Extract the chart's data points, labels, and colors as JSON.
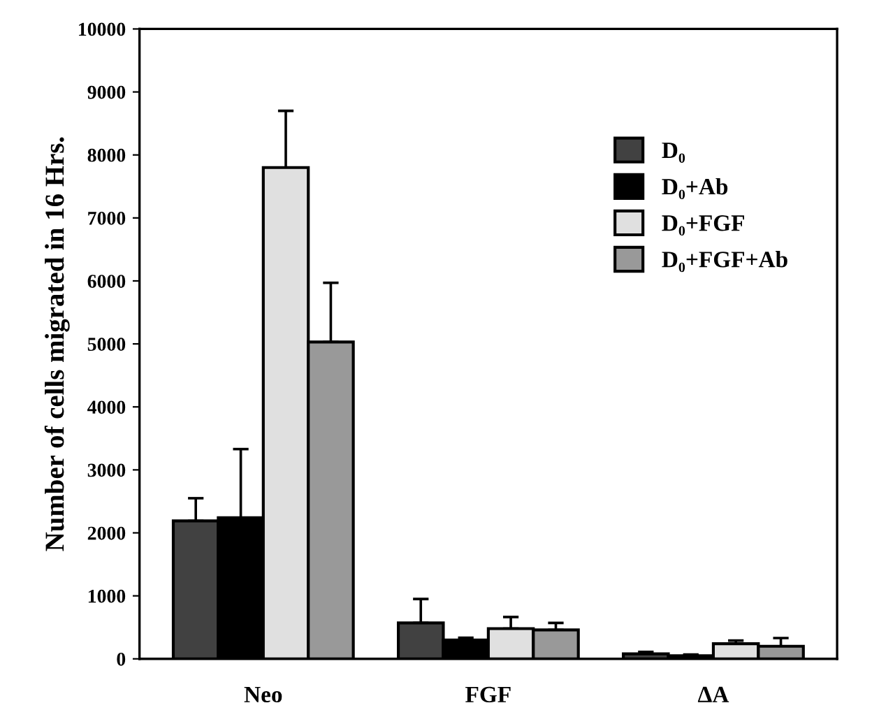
{
  "chart_data": {
    "type": "bar",
    "ylabel": "Number of cells migrated in 16 Hrs.",
    "categories": [
      "Neo",
      "FGF",
      "ΔA"
    ],
    "series": [
      {
        "name": "D₀",
        "color": "#414141",
        "values": [
          2190,
          570,
          80
        ],
        "errors": [
          360,
          380,
          30
        ]
      },
      {
        "name": "D₀+Ab",
        "color": "#000000",
        "values": [
          2240,
          300,
          50
        ],
        "errors": [
          1090,
          35,
          20
        ]
      },
      {
        "name": "D₀+FGF",
        "color": "#e0e0e0",
        "values": [
          7800,
          480,
          240
        ],
        "errors": [
          900,
          185,
          50
        ]
      },
      {
        "name": "D₀+FGF+Ab",
        "color": "#999999",
        "values": [
          5030,
          460,
          200
        ],
        "errors": [
          940,
          110,
          130
        ]
      }
    ],
    "ylim": [
      0,
      10000
    ],
    "yticks": [
      0,
      1000,
      2000,
      3000,
      4000,
      5000,
      6000,
      7000,
      8000,
      9000,
      10000
    ],
    "legend": "top right",
    "grid": false
  }
}
